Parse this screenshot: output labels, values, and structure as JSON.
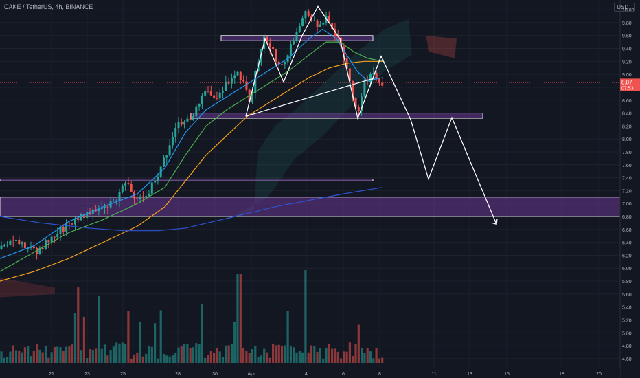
{
  "header": {
    "symbol": "CAKE / TetherUS, 4h, BINANCE",
    "quote": "USDT"
  },
  "price_label": {
    "price": "8.87",
    "timer": "07:53"
  },
  "colors": {
    "background": "#131722",
    "bull": "#26a69a",
    "bear": "#ef5350",
    "ema_fast": "#2196f3",
    "ema_mid": "#4caf50",
    "ema_slow": "#f7a21b",
    "ema_long": "#2f52d1",
    "zone": "#7b3fa8",
    "pattern": "#ffffff"
  },
  "chart_data": {
    "type": "candlestick",
    "yticks": [
      4.6,
      4.8,
      5.0,
      5.2,
      5.4,
      5.6,
      5.8,
      6.0,
      6.2,
      6.4,
      6.6,
      6.8,
      7.0,
      7.2,
      7.4,
      7.6,
      7.8,
      8.0,
      8.2,
      8.4,
      8.6,
      8.8,
      9.0,
      9.2,
      9.4,
      9.6,
      9.8,
      10.0
    ],
    "ylim": [
      4.45,
      10.15
    ],
    "xticks": [
      {
        "label": "21",
        "pos": 75
      },
      {
        "label": "23",
        "pos": 127
      },
      {
        "label": "25",
        "pos": 179
      },
      {
        "label": "28",
        "pos": 259
      },
      {
        "label": "30",
        "pos": 313
      },
      {
        "label": "Apr",
        "pos": 366
      },
      {
        "label": "4",
        "pos": 446
      },
      {
        "label": "6",
        "pos": 500
      },
      {
        "label": "8",
        "pos": 553
      },
      {
        "label": "11",
        "pos": 632
      },
      {
        "label": "13",
        "pos": 684
      },
      {
        "label": "15",
        "pos": 738
      },
      {
        "label": "18",
        "pos": 818
      },
      {
        "label": "20",
        "pos": 872
      }
    ],
    "current_price": 8.87,
    "candle_path": [
      [
        0,
        6.3
      ],
      [
        20,
        6.45
      ],
      [
        40,
        6.35
      ],
      [
        55,
        6.25
      ],
      [
        70,
        6.45
      ],
      [
        90,
        6.6
      ],
      [
        110,
        6.75
      ],
      [
        130,
        6.85
      ],
      [
        150,
        6.95
      ],
      [
        170,
        7.1
      ],
      [
        185,
        7.35
      ],
      [
        200,
        7.05
      ],
      [
        215,
        7.15
      ],
      [
        230,
        7.45
      ],
      [
        245,
        7.85
      ],
      [
        260,
        8.25
      ],
      [
        275,
        8.3
      ],
      [
        290,
        8.55
      ],
      [
        300,
        8.75
      ],
      [
        315,
        8.6
      ],
      [
        330,
        8.85
      ],
      [
        345,
        9.05
      ],
      [
        355,
        8.85
      ],
      [
        365,
        8.55
      ],
      [
        375,
        9.2
      ],
      [
        385,
        9.55
      ],
      [
        395,
        9.45
      ],
      [
        405,
        9.15
      ],
      [
        415,
        9.25
      ],
      [
        425,
        9.45
      ],
      [
        435,
        9.75
      ],
      [
        445,
        9.95
      ],
      [
        455,
        9.8
      ],
      [
        465,
        9.75
      ],
      [
        475,
        9.9
      ],
      [
        485,
        9.65
      ],
      [
        495,
        9.55
      ],
      [
        505,
        9.1
      ],
      [
        515,
        8.55
      ],
      [
        522,
        8.45
      ],
      [
        530,
        8.85
      ],
      [
        540,
        9.0
      ],
      [
        548,
        8.95
      ],
      [
        556,
        8.87
      ]
    ],
    "emas": {
      "fast": [
        [
          0,
          6.15
        ],
        [
          50,
          6.35
        ],
        [
          100,
          6.72
        ],
        [
          150,
          6.95
        ],
        [
          200,
          7.15
        ],
        [
          240,
          7.55
        ],
        [
          270,
          8.1
        ],
        [
          300,
          8.45
        ],
        [
          330,
          8.65
        ],
        [
          360,
          8.85
        ],
        [
          390,
          9.05
        ],
        [
          420,
          9.25
        ],
        [
          450,
          9.55
        ],
        [
          470,
          9.7
        ],
        [
          490,
          9.55
        ],
        [
          505,
          9.3
        ],
        [
          520,
          9.05
        ],
        [
          535,
          8.9
        ],
        [
          558,
          8.95
        ]
      ],
      "mid": [
        [
          0,
          5.95
        ],
        [
          50,
          6.25
        ],
        [
          100,
          6.55
        ],
        [
          150,
          6.75
        ],
        [
          200,
          7.0
        ],
        [
          240,
          7.25
        ],
        [
          270,
          7.75
        ],
        [
          300,
          8.2
        ],
        [
          330,
          8.45
        ],
        [
          360,
          8.65
        ],
        [
          390,
          8.85
        ],
        [
          420,
          9.05
        ],
        [
          450,
          9.3
        ],
        [
          475,
          9.5
        ],
        [
          495,
          9.5
        ],
        [
          515,
          9.35
        ],
        [
          535,
          9.25
        ],
        [
          558,
          9.2
        ]
      ],
      "slow": [
        [
          0,
          5.8
        ],
        [
          50,
          5.95
        ],
        [
          100,
          6.15
        ],
        [
          150,
          6.4
        ],
        [
          200,
          6.65
        ],
        [
          240,
          6.95
        ],
        [
          270,
          7.35
        ],
        [
          300,
          7.75
        ],
        [
          330,
          8.05
        ],
        [
          360,
          8.35
        ],
        [
          390,
          8.55
        ],
        [
          420,
          8.75
        ],
        [
          450,
          8.95
        ],
        [
          480,
          9.1
        ],
        [
          505,
          9.17
        ],
        [
          530,
          9.2
        ],
        [
          558,
          9.2
        ]
      ],
      "long": [
        [
          0,
          6.8
        ],
        [
          60,
          6.7
        ],
        [
          130,
          6.62
        ],
        [
          180,
          6.58
        ],
        [
          230,
          6.58
        ],
        [
          270,
          6.62
        ],
        [
          310,
          6.72
        ],
        [
          350,
          6.82
        ],
        [
          400,
          6.95
        ],
        [
          450,
          7.05
        ],
        [
          500,
          7.15
        ],
        [
          557,
          7.25
        ]
      ]
    },
    "zones": [
      {
        "from": 9.52,
        "to": 9.6,
        "x0": 322,
        "x1": 543
      },
      {
        "from": 8.32,
        "to": 8.4,
        "x0": 278,
        "x1": 703
      },
      {
        "from": 7.35,
        "to": 7.38,
        "x0": 0,
        "x1": 543
      },
      {
        "from": 6.8,
        "to": 7.1,
        "x0": 0,
        "x1": 932
      }
    ],
    "pattern_path": [
      [
        358,
        8.35
      ],
      [
        386,
        9.55
      ],
      [
        413,
        8.88
      ],
      [
        440,
        9.6
      ],
      [
        463,
        10.05
      ],
      [
        495,
        9.55
      ],
      [
        521,
        8.32
      ],
      [
        555,
        9.28
      ],
      [
        598,
        8.3
      ],
      [
        624,
        7.38
      ],
      [
        658,
        8.33
      ],
      [
        723,
        6.68
      ]
    ],
    "neckline": [
      [
        358,
        8.35
      ],
      [
        548,
        8.95
      ]
    ]
  }
}
